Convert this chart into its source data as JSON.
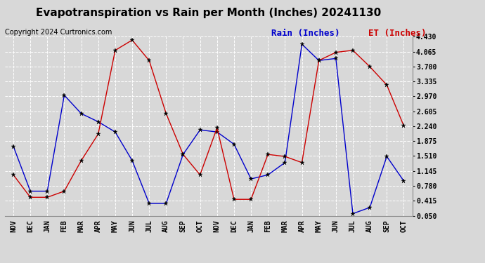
{
  "title": "Evapotranspiration vs Rain per Month (Inches) 20241130",
  "copyright": "Copyright 2024 Curtronics.com",
  "legend_rain": "Rain (Inches)",
  "legend_et": "ET (Inches)",
  "months": [
    "NOV",
    "DEC",
    "JAN",
    "FEB",
    "MAR",
    "APR",
    "MAY",
    "JUN",
    "JUL",
    "AUG",
    "SEP",
    "OCT",
    "NOV",
    "DEC",
    "JAN",
    "FEB",
    "MAR",
    "APR",
    "MAY",
    "JUN",
    "JUL",
    "AUG",
    "SEP",
    "OCT"
  ],
  "rain_inches": [
    1.75,
    0.65,
    0.65,
    3.0,
    2.55,
    2.35,
    2.1,
    1.4,
    0.35,
    0.35,
    1.55,
    2.15,
    2.1,
    1.8,
    0.95,
    1.05,
    1.35,
    4.25,
    3.85,
    3.9,
    0.1,
    0.25,
    1.5,
    0.9
  ],
  "et_inches": [
    1.05,
    0.5,
    0.5,
    0.65,
    1.4,
    2.05,
    4.1,
    4.35,
    3.85,
    2.55,
    1.55,
    1.05,
    2.2,
    0.45,
    0.45,
    1.55,
    1.5,
    1.35,
    3.85,
    4.05,
    4.1,
    3.7,
    3.25,
    2.25
  ],
  "rain_color": "#0000cc",
  "et_color": "#cc0000",
  "yticks": [
    0.05,
    0.415,
    0.78,
    1.145,
    1.51,
    1.875,
    2.24,
    2.605,
    2.97,
    3.335,
    3.7,
    4.065,
    4.43
  ],
  "ymin": 0.05,
  "ymax": 4.43,
  "background_color": "#d8d8d8",
  "grid_color": "#ffffff",
  "title_fontsize": 11,
  "axis_fontsize": 7,
  "copyright_fontsize": 7,
  "legend_fontsize": 9
}
